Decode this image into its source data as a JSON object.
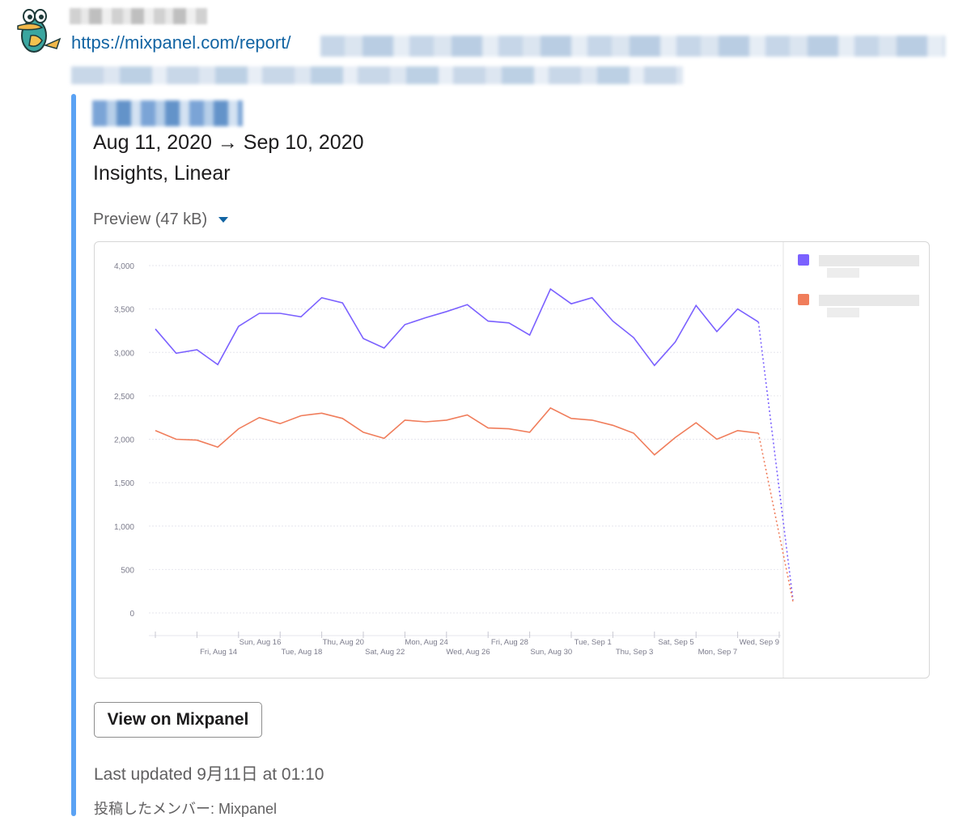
{
  "message": {
    "url_visible": "https://mixpanel.com/report/"
  },
  "attachment": {
    "date_range": "Aug 11, 2020 → Sep 10, 2020",
    "report_type": "Insights, Linear",
    "preview_label": "Preview",
    "preview_size": "(47 kB)",
    "button_label": "View on Mixpanel",
    "last_updated": "Last updated 9月11日 at 01:10",
    "posted_by": "投稿したメンバー: Mixpanel"
  },
  "colors": {
    "series_1": "#7b61ff",
    "series_2": "#f07d5b",
    "link": "#1264a3",
    "accent_bar": "#5aa2f4"
  },
  "chart_data": {
    "type": "line",
    "ylim": [
      0,
      4000
    ],
    "y_ticks": [
      "4,000",
      "3,500",
      "3,000",
      "2,500",
      "2,000",
      "1,500",
      "1,000",
      "500",
      "0"
    ],
    "x_tick_labels_upper": [
      "Sun, Aug 16",
      "Thu, Aug 20",
      "Mon, Aug 24",
      "Fri, Aug 28",
      "Tue, Sep 1",
      "Sat, Sep 5",
      "Wed, Sep 9"
    ],
    "x_tick_labels_lower": [
      "Fri, Aug 14",
      "Tue, Aug 18",
      "Sat, Aug 22",
      "Wed, Aug 26",
      "Sun, Aug 30",
      "Thu, Sep 3",
      "Mon, Sep 7"
    ],
    "grid": true,
    "legend_position": "right",
    "series": [
      {
        "values": [
          3270,
          2990,
          3030,
          2860,
          3300,
          3450,
          3450,
          3410,
          3630,
          3570,
          3160,
          3050,
          3320,
          3400,
          3470,
          3550,
          3360,
          3340,
          3200,
          3730,
          3560,
          3630,
          3360,
          3170,
          2850,
          3120,
          3540,
          3240,
          3500,
          3350,
          150
        ],
        "last_segment_dotted": true
      },
      {
        "values": [
          2100,
          2000,
          1990,
          1910,
          2120,
          2250,
          2180,
          2270,
          2300,
          2240,
          2080,
          2010,
          2220,
          2200,
          2220,
          2280,
          2130,
          2120,
          2080,
          2360,
          2240,
          2220,
          2160,
          2070,
          1820,
          2020,
          2190,
          2000,
          2100,
          2070,
          130
        ],
        "last_segment_dotted": true
      }
    ]
  }
}
